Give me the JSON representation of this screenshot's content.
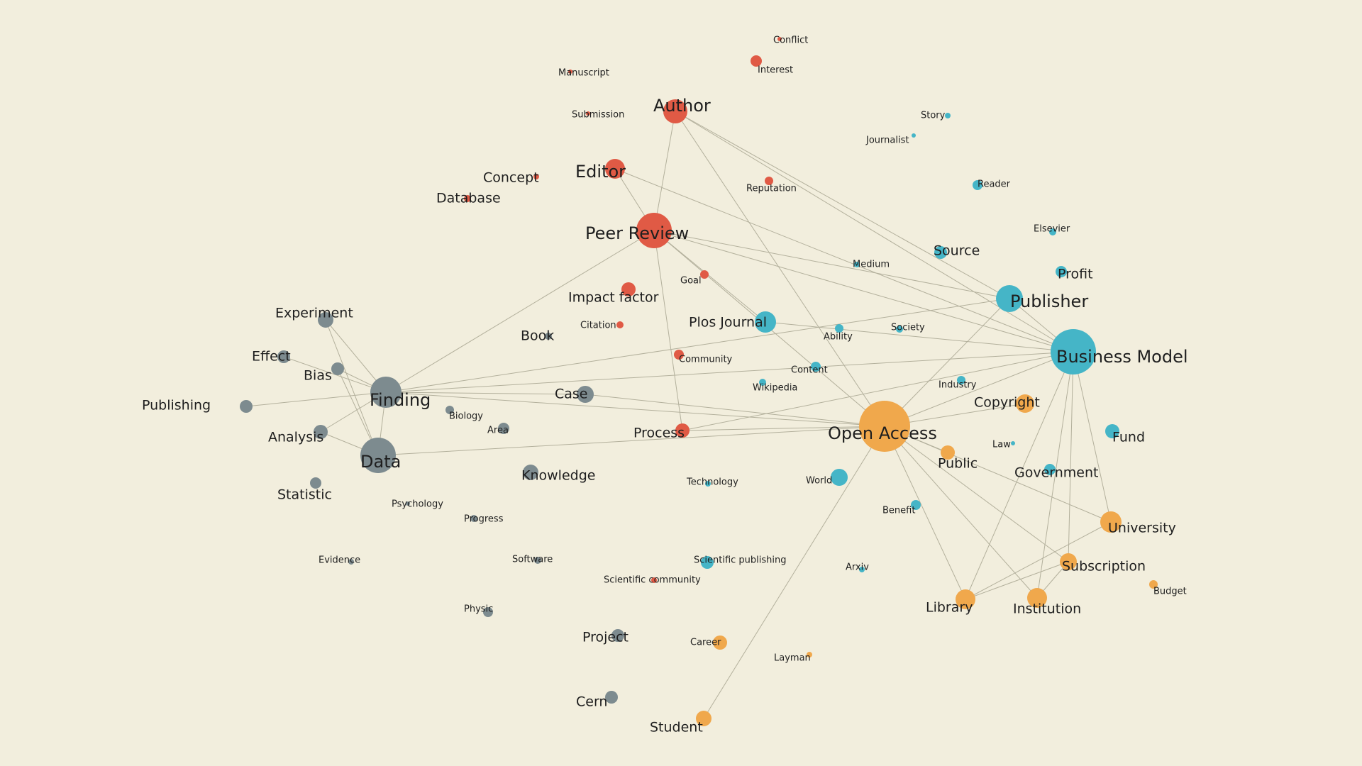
{
  "colors": {
    "background": "#f2eedd",
    "edge": "#b3b09c",
    "label": "#1e1e1e",
    "groups": {
      "peer_review": "#e05a45",
      "business": "#45b5c7",
      "access": "#f0a84c",
      "research": "#7d8b8f"
    }
  },
  "nodes": [
    {
      "id": "conflict",
      "label": "Conflict",
      "group": "peer_review",
      "weight": 1
    },
    {
      "id": "interest",
      "label": "Interest",
      "group": "peer_review",
      "weight": 2
    },
    {
      "id": "manuscript",
      "label": "Manuscript",
      "group": "peer_review",
      "weight": 1
    },
    {
      "id": "submission",
      "label": "Submission",
      "group": "peer_review",
      "weight": 1
    },
    {
      "id": "author",
      "label": "Author",
      "group": "peer_review",
      "weight": 4
    },
    {
      "id": "editor",
      "label": "Editor",
      "group": "peer_review",
      "weight": 3
    },
    {
      "id": "concept",
      "label": "Concept",
      "group": "peer_review",
      "weight": 1
    },
    {
      "id": "database",
      "label": "Database",
      "group": "peer_review",
      "weight": 1
    },
    {
      "id": "reputation",
      "label": "Reputation",
      "group": "peer_review",
      "weight": 1
    },
    {
      "id": "peer-review",
      "label": "Peer Review",
      "group": "peer_review",
      "weight": 6
    },
    {
      "id": "goal",
      "label": "Goal",
      "group": "peer_review",
      "weight": 1
    },
    {
      "id": "impact-factor",
      "label": "Impact factor",
      "group": "peer_review",
      "weight": 2
    },
    {
      "id": "citation",
      "label": "Citation",
      "group": "peer_review",
      "weight": 1
    },
    {
      "id": "community",
      "label": "Community",
      "group": "peer_review",
      "weight": 1
    },
    {
      "id": "process",
      "label": "Process",
      "group": "peer_review",
      "weight": 2
    },
    {
      "id": "scientific-community",
      "label": "Scientific community",
      "group": "peer_review",
      "weight": 1
    },
    {
      "id": "story",
      "label": "Story",
      "group": "business",
      "weight": 1
    },
    {
      "id": "journalist",
      "label": "Journalist",
      "group": "business",
      "weight": 1
    },
    {
      "id": "reader",
      "label": "Reader",
      "group": "business",
      "weight": 1
    },
    {
      "id": "elsevier",
      "label": "Elsevier",
      "group": "business",
      "weight": 1
    },
    {
      "id": "source",
      "label": "Source",
      "group": "business",
      "weight": 2
    },
    {
      "id": "medium",
      "label": "Medium",
      "group": "business",
      "weight": 1
    },
    {
      "id": "profit",
      "label": "Profit",
      "group": "business",
      "weight": 2
    },
    {
      "id": "publisher",
      "label": "Publisher",
      "group": "business",
      "weight": 5
    },
    {
      "id": "plos-journal",
      "label": "Plos Journal",
      "group": "business",
      "weight": 4
    },
    {
      "id": "ability",
      "label": "Ability",
      "group": "business",
      "weight": 1
    },
    {
      "id": "society",
      "label": "Society",
      "group": "business",
      "weight": 1
    },
    {
      "id": "business-model",
      "label": "Business Model",
      "group": "business",
      "weight": 8
    },
    {
      "id": "content",
      "label": "Content",
      "group": "business",
      "weight": 2
    },
    {
      "id": "wikipedia",
      "label": "Wikipedia",
      "group": "business",
      "weight": 1
    },
    {
      "id": "industry",
      "label": "Industry",
      "group": "business",
      "weight": 1
    },
    {
      "id": "fund",
      "label": "Fund",
      "group": "business",
      "weight": 2
    },
    {
      "id": "law",
      "label": "Law",
      "group": "business",
      "weight": 1
    },
    {
      "id": "government",
      "label": "Government",
      "group": "business",
      "weight": 1
    },
    {
      "id": "world",
      "label": "World",
      "group": "business",
      "weight": 3
    },
    {
      "id": "technology",
      "label": "Technology",
      "group": "business",
      "weight": 1
    },
    {
      "id": "benefit",
      "label": "Benefit",
      "group": "business",
      "weight": 1
    },
    {
      "id": "scientific-publishing",
      "label": "Scientific publishing",
      "group": "business",
      "weight": 2
    },
    {
      "id": "arxiv",
      "label": "Arxiv",
      "group": "business",
      "weight": 1
    },
    {
      "id": "copyright",
      "label": "Copyright",
      "group": "access",
      "weight": 3
    },
    {
      "id": "open-access",
      "label": "Open Access",
      "group": "access",
      "weight": 10
    },
    {
      "id": "public",
      "label": "Public",
      "group": "access",
      "weight": 2
    },
    {
      "id": "university",
      "label": "University",
      "group": "access",
      "weight": 4
    },
    {
      "id": "subscription",
      "label": "Subscription",
      "group": "access",
      "weight": 3
    },
    {
      "id": "budget",
      "label": "Budget",
      "group": "access",
      "weight": 1
    },
    {
      "id": "library",
      "label": "Library",
      "group": "access",
      "weight": 3
    },
    {
      "id": "institution",
      "label": "Institution",
      "group": "access",
      "weight": 3
    },
    {
      "id": "career",
      "label": "Career",
      "group": "access",
      "weight": 2
    },
    {
      "id": "layman",
      "label": "Layman",
      "group": "access",
      "weight": 1
    },
    {
      "id": "student",
      "label": "Student",
      "group": "access",
      "weight": 3
    },
    {
      "id": "experiment",
      "label": "Experiment",
      "group": "research",
      "weight": 3
    },
    {
      "id": "effect",
      "label": "Effect",
      "group": "research",
      "weight": 2
    },
    {
      "id": "bias",
      "label": "Bias",
      "group": "research",
      "weight": 2
    },
    {
      "id": "finding",
      "label": "Finding",
      "group": "research",
      "weight": 6
    },
    {
      "id": "publishing",
      "label": "Publishing",
      "group": "research",
      "weight": 2
    },
    {
      "id": "analysis",
      "label": "Analysis",
      "group": "research",
      "weight": 2
    },
    {
      "id": "data",
      "label": "Data",
      "group": "research",
      "weight": 6
    },
    {
      "id": "statistic",
      "label": "Statistic",
      "group": "research",
      "weight": 2
    },
    {
      "id": "book",
      "label": "Book",
      "group": "research",
      "weight": 1
    },
    {
      "id": "case",
      "label": "Case",
      "group": "research",
      "weight": 3
    },
    {
      "id": "biology",
      "label": "Biology",
      "group": "research",
      "weight": 1
    },
    {
      "id": "area",
      "label": "Area",
      "group": "research",
      "weight": 2
    },
    {
      "id": "knowledge",
      "label": "Knowledge",
      "group": "research",
      "weight": 2
    },
    {
      "id": "psychology",
      "label": "Psychology",
      "group": "research",
      "weight": 1
    },
    {
      "id": "progress",
      "label": "Progress",
      "group": "research",
      "weight": 1
    },
    {
      "id": "evidence",
      "label": "Evidence",
      "group": "research",
      "weight": 1
    },
    {
      "id": "software",
      "label": "Software",
      "group": "research",
      "weight": 1
    },
    {
      "id": "physic",
      "label": "Physic",
      "group": "research",
      "weight": 2
    },
    {
      "id": "project",
      "label": "Project",
      "group": "research",
      "weight": 2
    },
    {
      "id": "cern",
      "label": "Cern",
      "group": "research",
      "weight": 2
    }
  ],
  "edges": [
    [
      "author",
      "peer-review"
    ],
    [
      "author",
      "open-access"
    ],
    [
      "author",
      "publisher"
    ],
    [
      "author",
      "business-model"
    ],
    [
      "editor",
      "peer-review"
    ],
    [
      "editor",
      "business-model"
    ],
    [
      "peer-review",
      "finding"
    ],
    [
      "peer-review",
      "process"
    ],
    [
      "peer-review",
      "publisher"
    ],
    [
      "peer-review",
      "business-model"
    ],
    [
      "peer-review",
      "open-access"
    ],
    [
      "peer-review",
      "plos-journal"
    ],
    [
      "publisher",
      "finding"
    ],
    [
      "publisher",
      "open-access"
    ],
    [
      "publisher",
      "business-model"
    ],
    [
      "business-model",
      "finding"
    ],
    [
      "business-model",
      "open-access"
    ],
    [
      "business-model",
      "plos-journal"
    ],
    [
      "business-model",
      "library"
    ],
    [
      "business-model",
      "institution"
    ],
    [
      "business-model",
      "subscription"
    ],
    [
      "business-model",
      "university"
    ],
    [
      "business-model",
      "process"
    ],
    [
      "finding",
      "experiment"
    ],
    [
      "finding",
      "effect"
    ],
    [
      "finding",
      "bias"
    ],
    [
      "finding",
      "publishing"
    ],
    [
      "finding",
      "analysis"
    ],
    [
      "finding",
      "data"
    ],
    [
      "finding",
      "open-access"
    ],
    [
      "finding",
      "case"
    ],
    [
      "data",
      "experiment"
    ],
    [
      "data",
      "bias"
    ],
    [
      "data",
      "analysis"
    ],
    [
      "data",
      "open-access"
    ],
    [
      "open-access",
      "student"
    ],
    [
      "open-access",
      "library"
    ],
    [
      "open-access",
      "institution"
    ],
    [
      "open-access",
      "university"
    ],
    [
      "open-access",
      "subscription"
    ],
    [
      "open-access",
      "public"
    ],
    [
      "open-access",
      "copyright"
    ],
    [
      "open-access",
      "process"
    ],
    [
      "open-access",
      "case"
    ],
    [
      "subscription",
      "library"
    ],
    [
      "subscription",
      "institution"
    ],
    [
      "university",
      "library"
    ]
  ]
}
